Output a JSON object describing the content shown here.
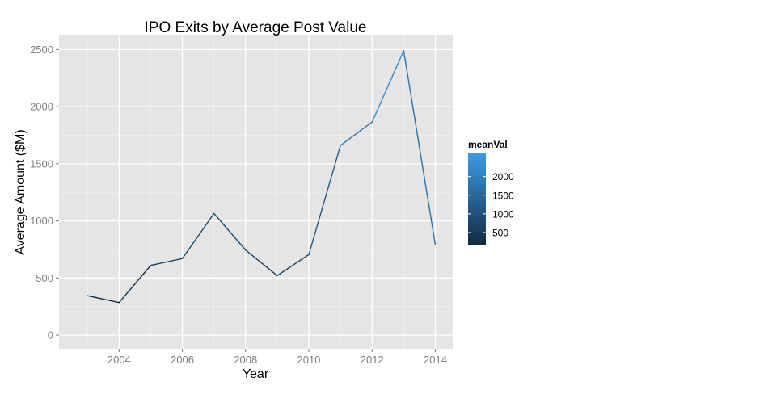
{
  "chart_data": {
    "type": "line",
    "title": "IPO Exits by Average Post Value",
    "xlabel": "Year",
    "ylabel": "Average Amount ($M)",
    "x": [
      2003,
      2004,
      2005,
      2006,
      2007,
      2008,
      2009,
      2010,
      2011,
      2012,
      2013,
      2014
    ],
    "values": [
      345,
      285,
      610,
      670,
      1065,
      745,
      520,
      705,
      1660,
      1865,
      2490,
      790
    ],
    "xlim": [
      2002.1,
      2014.55
    ],
    "ylim": [
      -120,
      2630
    ],
    "x_ticks": [
      2004,
      2006,
      2008,
      2010,
      2012,
      2014
    ],
    "y_ticks": [
      0,
      500,
      1000,
      1500,
      2000,
      2500
    ],
    "grid": true,
    "color_scale": {
      "name": "meanVal",
      "low_color": "#132b43",
      "high_color": "#3d9be6",
      "range": [
        285,
        2490
      ],
      "breaks": [
        500,
        1000,
        1500,
        2000
      ]
    },
    "legend_position": "right"
  }
}
